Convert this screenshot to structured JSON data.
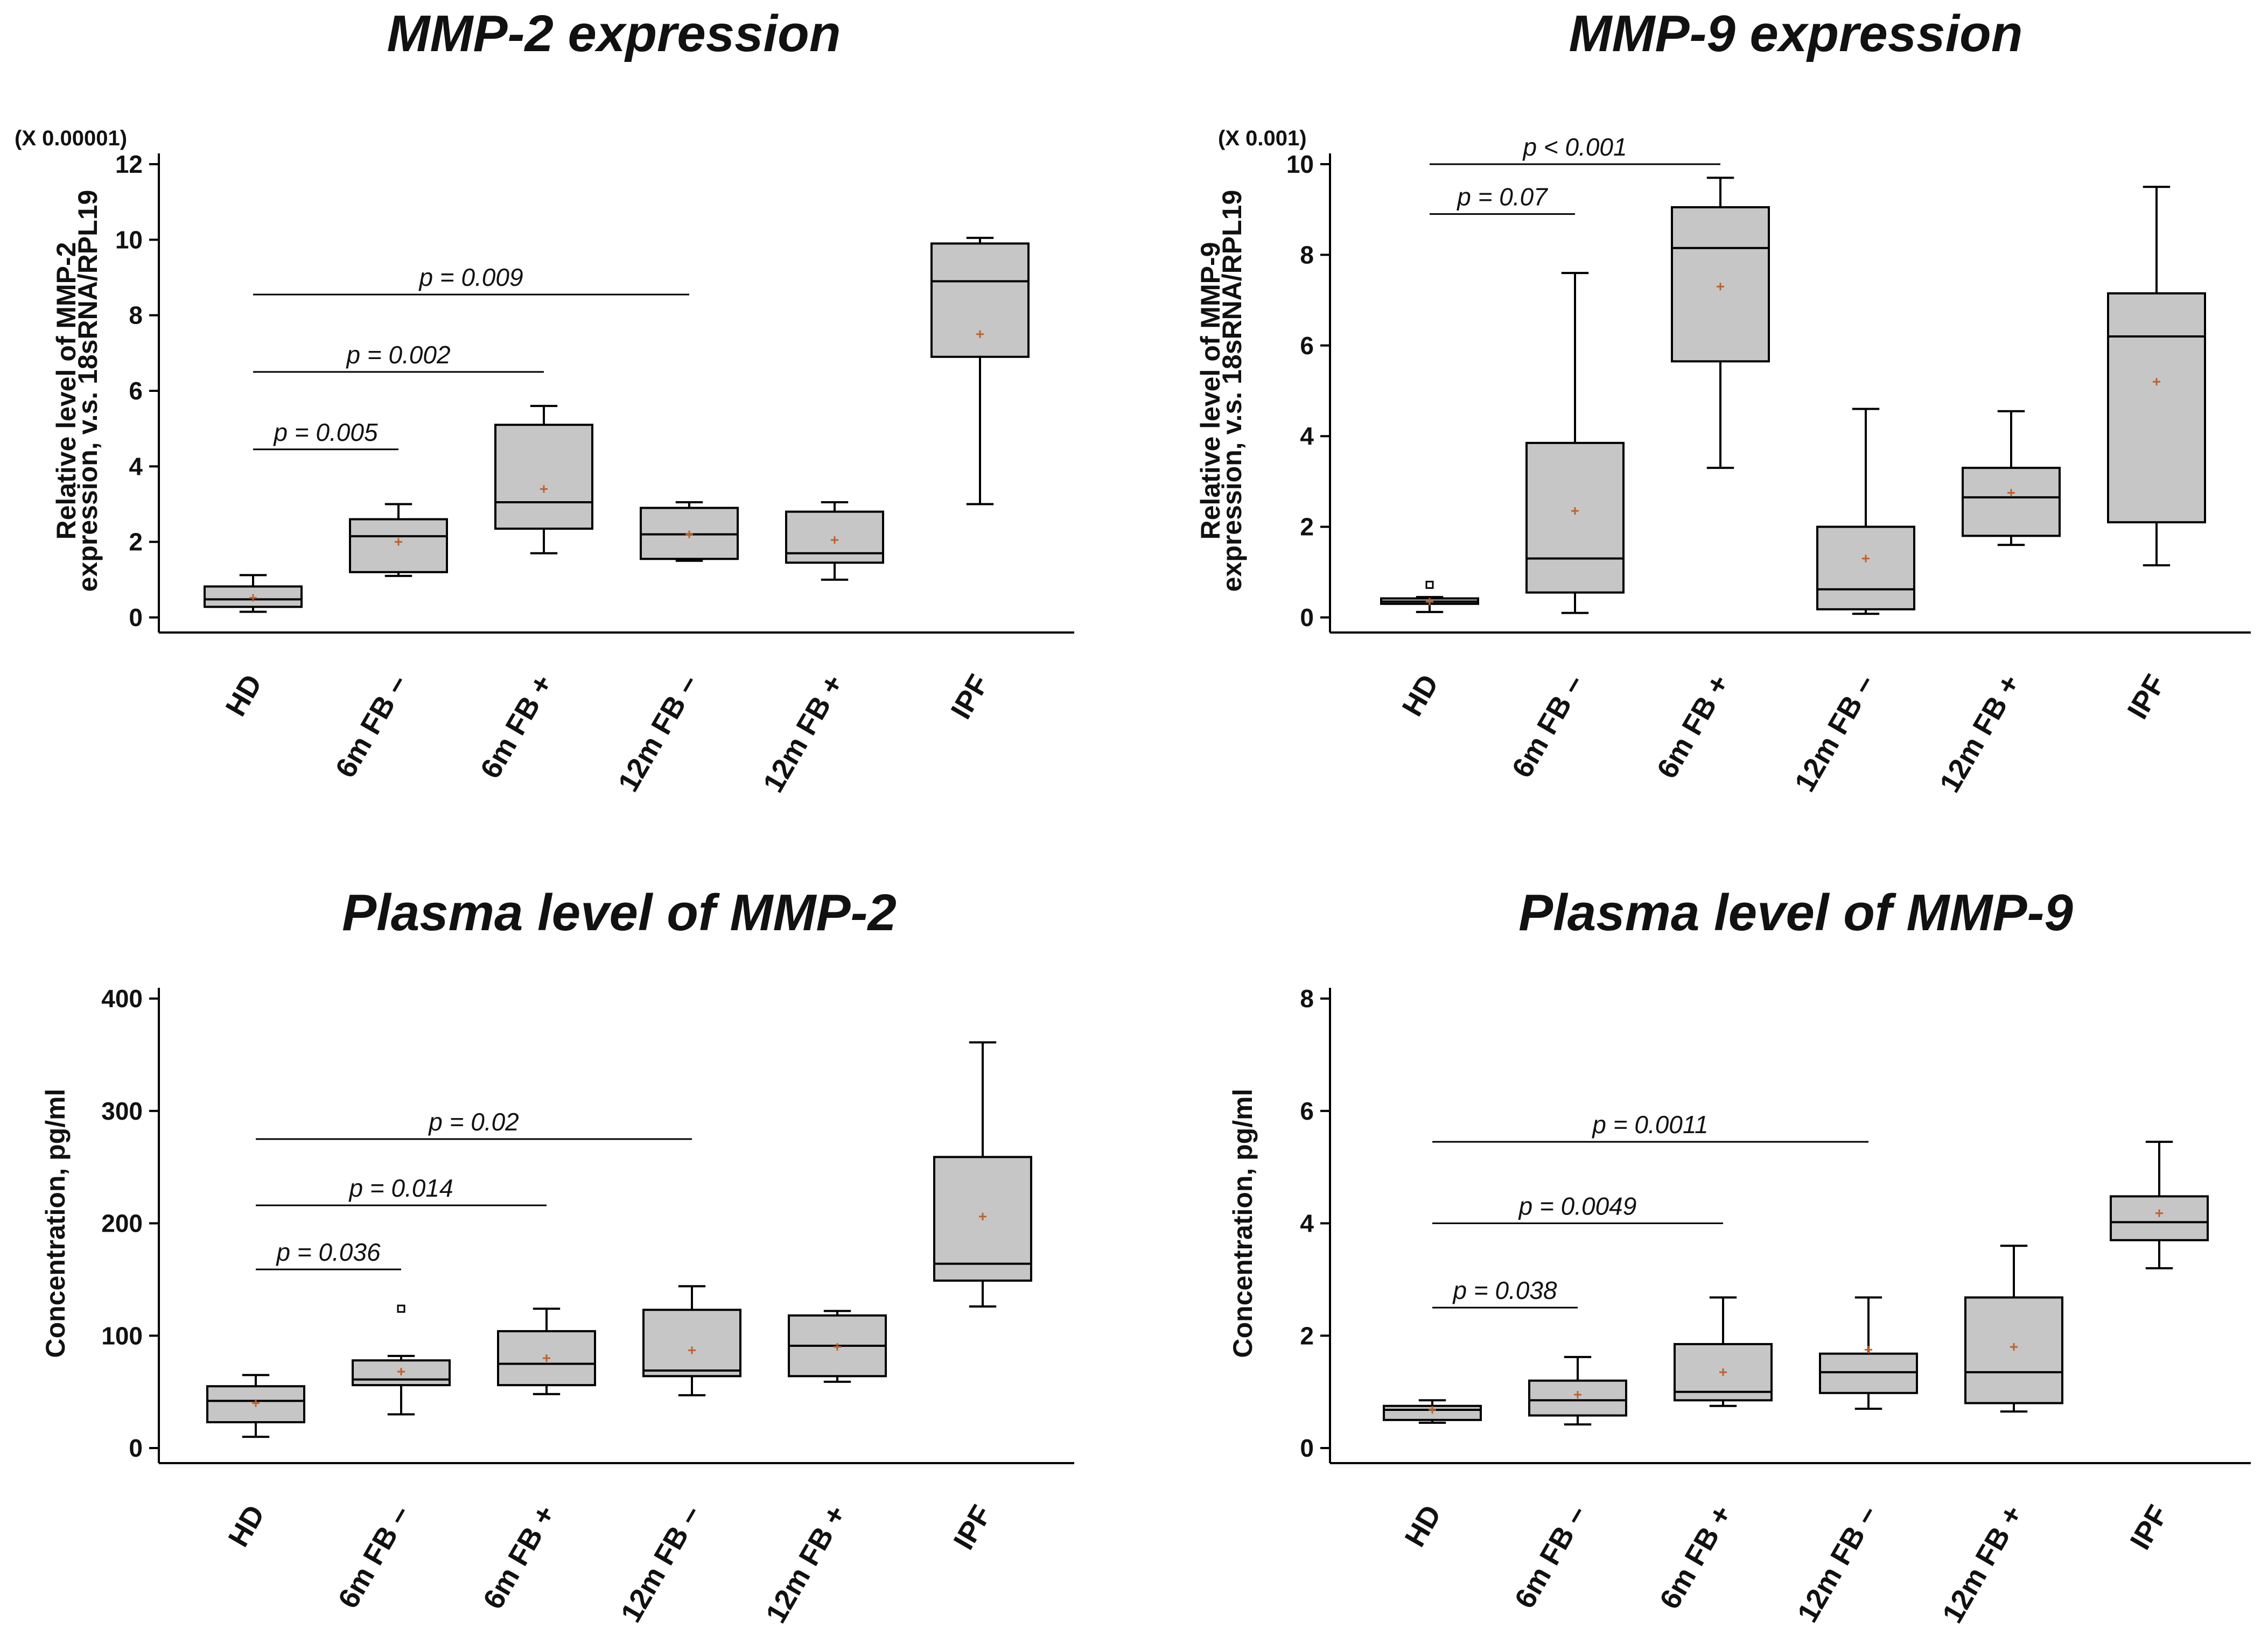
{
  "chart_data": [
    {
      "type": "box",
      "title": "MMP-2 expression",
      "ylabel": [
        "Relative level of MMP-2",
        "expression,  v.s. 18sRNA/RPL19"
      ],
      "y_multiplier": "(X 0.00001)",
      "ylim": [
        0,
        12
      ],
      "yticks": [
        0,
        2,
        4,
        6,
        8,
        10,
        12
      ],
      "categories": [
        "HD",
        "6m FB –",
        "6m FB +",
        "12m FB –",
        "12m FB +",
        "IPF"
      ],
      "boxes": [
        {
          "min": 0.15,
          "q1": 0.28,
          "median": 0.48,
          "q3": 0.82,
          "max": 1.12,
          "mean": 0.52,
          "outliers": []
        },
        {
          "min": 1.1,
          "q1": 1.2,
          "median": 2.15,
          "q3": 2.6,
          "max": 3.0,
          "mean": 2.0,
          "outliers": []
        },
        {
          "min": 1.7,
          "q1": 2.35,
          "median": 3.05,
          "q3": 5.1,
          "max": 5.6,
          "mean": 3.4,
          "outliers": []
        },
        {
          "min": 1.5,
          "q1": 1.55,
          "median": 2.2,
          "q3": 2.9,
          "max": 3.05,
          "mean": 2.2,
          "outliers": []
        },
        {
          "min": 1.0,
          "q1": 1.45,
          "median": 1.7,
          "q3": 2.8,
          "max": 3.05,
          "mean": 2.05,
          "outliers": []
        },
        {
          "min": 3.0,
          "q1": 6.9,
          "median": 8.9,
          "q3": 9.9,
          "max": 10.05,
          "mean": 7.5,
          "outliers": []
        }
      ],
      "comparisons": [
        {
          "from": 0,
          "to": 1,
          "label": "p = 0.005",
          "y": 4.45
        },
        {
          "from": 0,
          "to": 2,
          "label": "p = 0.002",
          "y": 6.5
        },
        {
          "from": 0,
          "to": 3,
          "label": "p = 0.009",
          "y": 8.55
        }
      ]
    },
    {
      "type": "box",
      "title": "MMP-9 expression",
      "ylabel": [
        "Relative level of MMP-9",
        "expression,  v.s. 18sRNA/RPL19"
      ],
      "y_multiplier": "(X 0.001)",
      "ylim": [
        0,
        10
      ],
      "yticks": [
        0,
        2,
        4,
        6,
        8,
        10
      ],
      "categories": [
        "HD",
        "6m FB –",
        "6m FB +",
        "12m FB –",
        "12m FB +",
        "IPF"
      ],
      "boxes": [
        {
          "min": 0.12,
          "q1": 0.3,
          "median": 0.35,
          "q3": 0.42,
          "max": 0.45,
          "mean": 0.35,
          "outliers": [
            0.72
          ]
        },
        {
          "min": 0.1,
          "q1": 0.55,
          "median": 1.3,
          "q3": 3.85,
          "max": 7.6,
          "mean": 2.35,
          "outliers": []
        },
        {
          "min": 3.3,
          "q1": 5.65,
          "median": 8.15,
          "q3": 9.05,
          "max": 9.7,
          "mean": 7.3,
          "outliers": []
        },
        {
          "min": 0.08,
          "q1": 0.18,
          "median": 0.62,
          "q3": 2.0,
          "max": 4.6,
          "mean": 1.3,
          "outliers": []
        },
        {
          "min": 1.6,
          "q1": 1.8,
          "median": 2.65,
          "q3": 3.3,
          "max": 4.55,
          "mean": 2.75,
          "outliers": []
        },
        {
          "min": 1.15,
          "q1": 2.1,
          "median": 6.2,
          "q3": 7.15,
          "max": 9.5,
          "mean": 5.2,
          "outliers": []
        }
      ],
      "comparisons": [
        {
          "from": 0,
          "to": 1,
          "label": "p = 0.07",
          "y": 8.9
        },
        {
          "from": 0,
          "to": 2,
          "label": "p < 0.001",
          "y": 10.0
        }
      ]
    },
    {
      "type": "box",
      "title": "Plasma level of MMP-2",
      "ylabel": [
        "Concentration, pg/ml"
      ],
      "y_multiplier": "",
      "ylim": [
        0,
        400
      ],
      "yticks": [
        0,
        100,
        200,
        300,
        400
      ],
      "categories": [
        "HD",
        "6m FB –",
        "6m FB +",
        "12m FB –",
        "12m FB +",
        "IPF"
      ],
      "boxes": [
        {
          "min": 10,
          "q1": 23,
          "median": 42,
          "q3": 55,
          "max": 65,
          "mean": 40,
          "outliers": []
        },
        {
          "min": 30,
          "q1": 56,
          "median": 61,
          "q3": 78,
          "max": 82,
          "mean": 68,
          "outliers": [
            124
          ]
        },
        {
          "min": 48,
          "q1": 56,
          "median": 75,
          "q3": 104,
          "max": 124,
          "mean": 80,
          "outliers": []
        },
        {
          "min": 47,
          "q1": 64,
          "median": 69,
          "q3": 123,
          "max": 144,
          "mean": 87,
          "outliers": []
        },
        {
          "min": 59,
          "q1": 64,
          "median": 91,
          "q3": 118,
          "max": 122,
          "mean": 90,
          "outliers": []
        },
        {
          "min": 126,
          "q1": 149,
          "median": 164,
          "q3": 259,
          "max": 361,
          "mean": 206,
          "outliers": []
        }
      ],
      "comparisons": [
        {
          "from": 0,
          "to": 1,
          "label": "p = 0.036",
          "y": 159
        },
        {
          "from": 0,
          "to": 2,
          "label": "p = 0.014",
          "y": 216
        },
        {
          "from": 0,
          "to": 3,
          "label": "p = 0.02",
          "y": 275
        }
      ]
    },
    {
      "type": "box",
      "title": "Plasma level of MMP-9",
      "ylabel": [
        "Concentration, pg/ml"
      ],
      "y_multiplier": "",
      "ylim": [
        0,
        8
      ],
      "yticks": [
        0,
        2,
        4,
        6,
        8
      ],
      "categories": [
        "HD",
        "6m FB –",
        "6m FB +",
        "12m FB –",
        "12m FB +",
        "IPF"
      ],
      "boxes": [
        {
          "min": 0.45,
          "q1": 0.5,
          "median": 0.68,
          "q3": 0.75,
          "max": 0.85,
          "mean": 0.68,
          "outliers": []
        },
        {
          "min": 0.42,
          "q1": 0.58,
          "median": 0.85,
          "q3": 1.2,
          "max": 1.62,
          "mean": 0.95,
          "outliers": []
        },
        {
          "min": 0.75,
          "q1": 0.85,
          "median": 1.0,
          "q3": 1.85,
          "max": 2.68,
          "mean": 1.35,
          "outliers": []
        },
        {
          "min": 0.7,
          "q1": 0.98,
          "median": 1.35,
          "q3": 1.68,
          "max": 2.68,
          "mean": 1.75,
          "outliers": []
        },
        {
          "min": 0.65,
          "q1": 0.8,
          "median": 1.35,
          "q3": 2.68,
          "max": 3.6,
          "mean": 1.8,
          "outliers": []
        },
        {
          "min": 3.2,
          "q1": 3.7,
          "median": 4.02,
          "q3": 4.48,
          "max": 5.45,
          "mean": 4.18,
          "outliers": []
        }
      ],
      "comparisons": [
        {
          "from": 0,
          "to": 1,
          "label": "p = 0.038",
          "y": 2.5
        },
        {
          "from": 0,
          "to": 2,
          "label": "p = 0.0049",
          "y": 4.0
        },
        {
          "from": 0,
          "to": 3,
          "label": "p = 0.0011",
          "y": 5.45
        }
      ]
    }
  ],
  "colors": {
    "box_fill": "#c6c6c6",
    "box_stroke": "#000000",
    "mean_marker": "#c0612b",
    "axis": "#000000"
  }
}
